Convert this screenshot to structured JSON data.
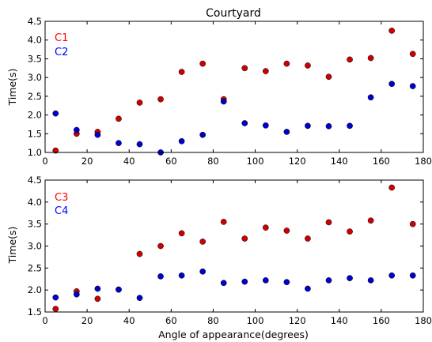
{
  "chart_data": [
    {
      "type": "scatter",
      "title": "Courtyard",
      "xlabel": "",
      "ylabel": "Time(s)",
      "xlim": [
        0,
        180
      ],
      "ylim": [
        1.0,
        4.5
      ],
      "xticks": [
        "0",
        "20",
        "40",
        "60",
        "80",
        "100",
        "120",
        "140",
        "160",
        "180"
      ],
      "yticks": [
        "1.0",
        "1.5",
        "2.0",
        "2.5",
        "3.0",
        "3.5",
        "4.0",
        "4.5"
      ],
      "grid": false,
      "legend_position": "top-left",
      "series": [
        {
          "name": "C1",
          "color": "#cc0000",
          "text_color": "#ff0000",
          "x": [
            5,
            15,
            25,
            35,
            45,
            55,
            65,
            75,
            85,
            95,
            105,
            115,
            125,
            135,
            145,
            155,
            165,
            175
          ],
          "y": [
            1.05,
            1.5,
            1.55,
            1.9,
            2.33,
            2.42,
            3.15,
            3.37,
            2.42,
            3.25,
            3.17,
            3.37,
            3.32,
            3.02,
            3.48,
            3.52,
            4.25,
            3.63
          ]
        },
        {
          "name": "C2",
          "color": "#0000cc",
          "text_color": "#0000ff",
          "x": [
            5,
            15,
            25,
            35,
            45,
            55,
            65,
            75,
            85,
            95,
            105,
            115,
            125,
            135,
            145,
            155,
            165,
            175
          ],
          "y": [
            2.04,
            1.6,
            1.47,
            1.25,
            1.22,
            1.0,
            1.3,
            1.47,
            2.36,
            1.78,
            1.72,
            1.55,
            1.71,
            1.7,
            1.71,
            2.47,
            2.83,
            2.77
          ]
        }
      ]
    },
    {
      "type": "scatter",
      "title": "",
      "xlabel": "Angle of appearance(degrees)",
      "ylabel": "Time(s)",
      "xlim": [
        0,
        180
      ],
      "ylim": [
        1.5,
        4.5
      ],
      "xticks": [
        "0",
        "20",
        "40",
        "60",
        "80",
        "100",
        "120",
        "140",
        "160",
        "180"
      ],
      "yticks": [
        "1.5",
        "2.0",
        "2.5",
        "3.0",
        "3.5",
        "4.0",
        "4.5"
      ],
      "grid": false,
      "legend_position": "top-left",
      "series": [
        {
          "name": "C3",
          "color": "#cc0000",
          "text_color": "#ff0000",
          "x": [
            5,
            15,
            25,
            35,
            45,
            55,
            65,
            75,
            85,
            95,
            105,
            115,
            125,
            135,
            145,
            155,
            165,
            175
          ],
          "y": [
            1.57,
            1.97,
            1.8,
            2.01,
            2.82,
            3.0,
            3.29,
            3.1,
            3.55,
            3.17,
            3.42,
            3.35,
            3.17,
            3.54,
            3.33,
            3.58,
            4.33,
            3.5
          ]
        },
        {
          "name": "C4",
          "color": "#0000cc",
          "text_color": "#0000ff",
          "x": [
            5,
            15,
            25,
            35,
            45,
            55,
            65,
            75,
            85,
            95,
            105,
            115,
            125,
            135,
            145,
            155,
            165,
            175
          ],
          "y": [
            1.83,
            1.9,
            2.03,
            2.01,
            1.82,
            2.31,
            2.33,
            2.42,
            2.16,
            2.19,
            2.22,
            2.18,
            2.03,
            2.22,
            2.27,
            2.22,
            2.33,
            2.33
          ]
        }
      ]
    }
  ]
}
